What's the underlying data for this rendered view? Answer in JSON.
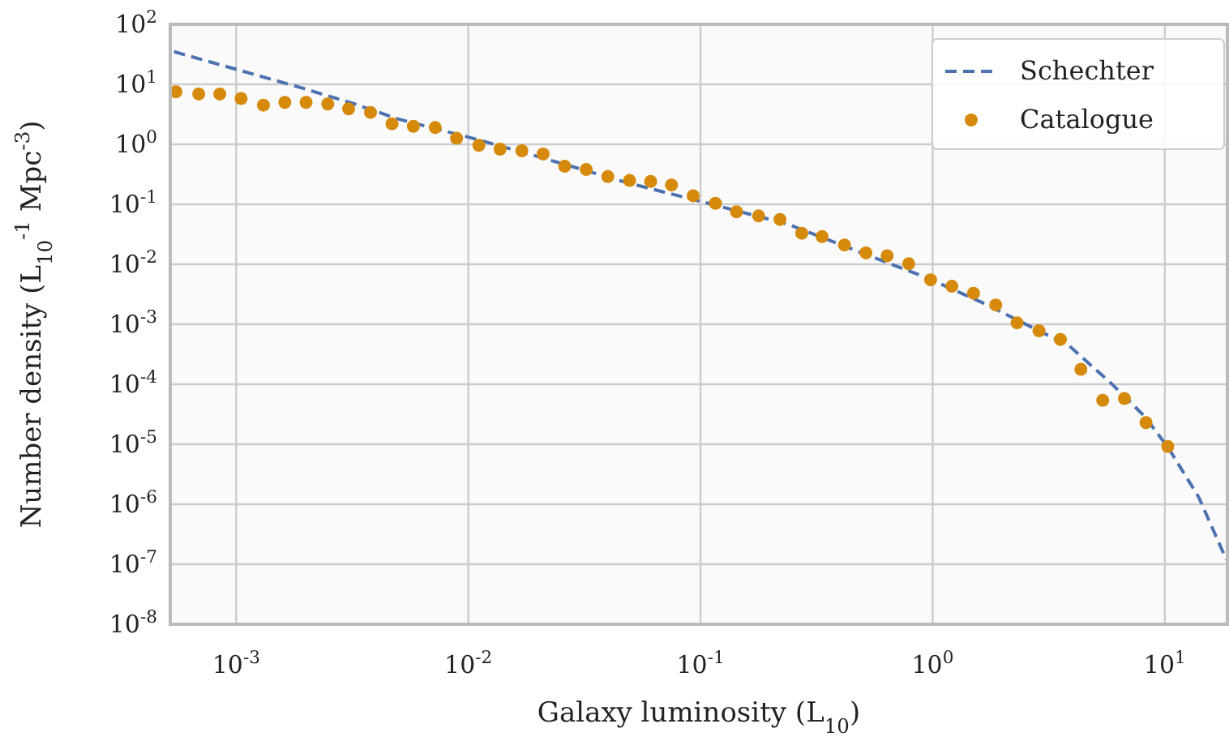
{
  "chart_data": {
    "type": "line",
    "xlabel": "Galaxy luminosity (L$_{10}$)",
    "ylabel": "Number density (L$_{10}$$^{-1}$ Mpc$^{-3}$)",
    "log": "xy",
    "grid": true,
    "legend": "top right",
    "xlim": [
      0.00052,
      18.6
    ],
    "ylim": [
      1e-08,
      100
    ],
    "xticks": [
      {
        "value": 0.001,
        "label": "10$^{-3}$"
      },
      {
        "value": 0.01,
        "label": "10$^{-2}$"
      },
      {
        "value": 0.1,
        "label": "10$^{-1}$"
      },
      {
        "value": 1,
        "label": "10$^{0}$"
      },
      {
        "value": 10,
        "label": "10$^{1}$"
      }
    ],
    "yticks": [
      {
        "value": 1e-08,
        "label": "10$^{-8}$"
      },
      {
        "value": 1e-07,
        "label": "10$^{-7}$"
      },
      {
        "value": 1e-06,
        "label": "10$^{-6}$"
      },
      {
        "value": 1e-05,
        "label": "10$^{-5}$"
      },
      {
        "value": 0.0001,
        "label": "10$^{-4}$"
      },
      {
        "value": 0.001,
        "label": "10$^{-3}$"
      },
      {
        "value": 0.01,
        "label": "10$^{-2}$"
      },
      {
        "value": 0.1,
        "label": "10$^{-1}$"
      },
      {
        "value": 1,
        "label": "10$^{0}$"
      },
      {
        "value": 10,
        "label": "10$^{1}$"
      },
      {
        "value": 100,
        "label": "10$^{2}$"
      }
    ],
    "series": [
      {
        "name": "Schechter",
        "line_style": "dashed",
        "marker": "none",
        "color": "#4c72b0",
        "x": [
          0.00054,
          0.001,
          0.0019,
          0.00324,
          0.00497,
          0.0103,
          0.0201,
          0.0474,
          0.112,
          0.238,
          0.477,
          0.96,
          1.64,
          2.81,
          3.87,
          5.9,
          8.2,
          10.4,
          14.0,
          18.4
        ],
        "values": [
          35,
          17.8,
          8.8,
          4.7,
          2.65,
          1.28,
          0.62,
          0.234,
          0.1,
          0.0466,
          0.0164,
          0.0058,
          0.00229,
          0.00081,
          0.00044,
          0.000102,
          2.9e-05,
          8.5e-06,
          1.31e-06,
          1.2e-07
        ]
      },
      {
        "name": "Catalogue",
        "type": "scatter",
        "marker": "circle",
        "color": "#d68a0b",
        "x": [
          0.00055,
          0.00069,
          0.00085,
          0.00105,
          0.00131,
          0.00162,
          0.002,
          0.00248,
          0.00305,
          0.00379,
          0.00469,
          0.0058,
          0.0072,
          0.0089,
          0.0111,
          0.0137,
          0.017,
          0.021,
          0.026,
          0.0322,
          0.0399,
          0.0495,
          0.061,
          0.075,
          0.093,
          0.116,
          0.143,
          0.178,
          0.22,
          0.273,
          0.334,
          0.417,
          0.516,
          0.637,
          0.789,
          0.98,
          1.21,
          1.5,
          1.87,
          2.31,
          2.87,
          3.55,
          4.35,
          5.4,
          6.7,
          8.3,
          10.3
        ],
        "values": [
          7.5,
          6.9,
          6.9,
          5.8,
          4.5,
          5.0,
          5.0,
          4.7,
          3.9,
          3.4,
          2.2,
          2.0,
          1.9,
          1.26,
          0.96,
          0.83,
          0.78,
          0.69,
          0.43,
          0.38,
          0.29,
          0.25,
          0.24,
          0.21,
          0.139,
          0.104,
          0.075,
          0.064,
          0.056,
          0.033,
          0.029,
          0.021,
          0.0155,
          0.0139,
          0.0102,
          0.0055,
          0.0043,
          0.0033,
          0.0021,
          0.00106,
          0.00078,
          0.00056,
          0.000178,
          5.4e-05,
          5.8e-05,
          2.3e-05,
          9.2e-06
        ]
      }
    ]
  }
}
